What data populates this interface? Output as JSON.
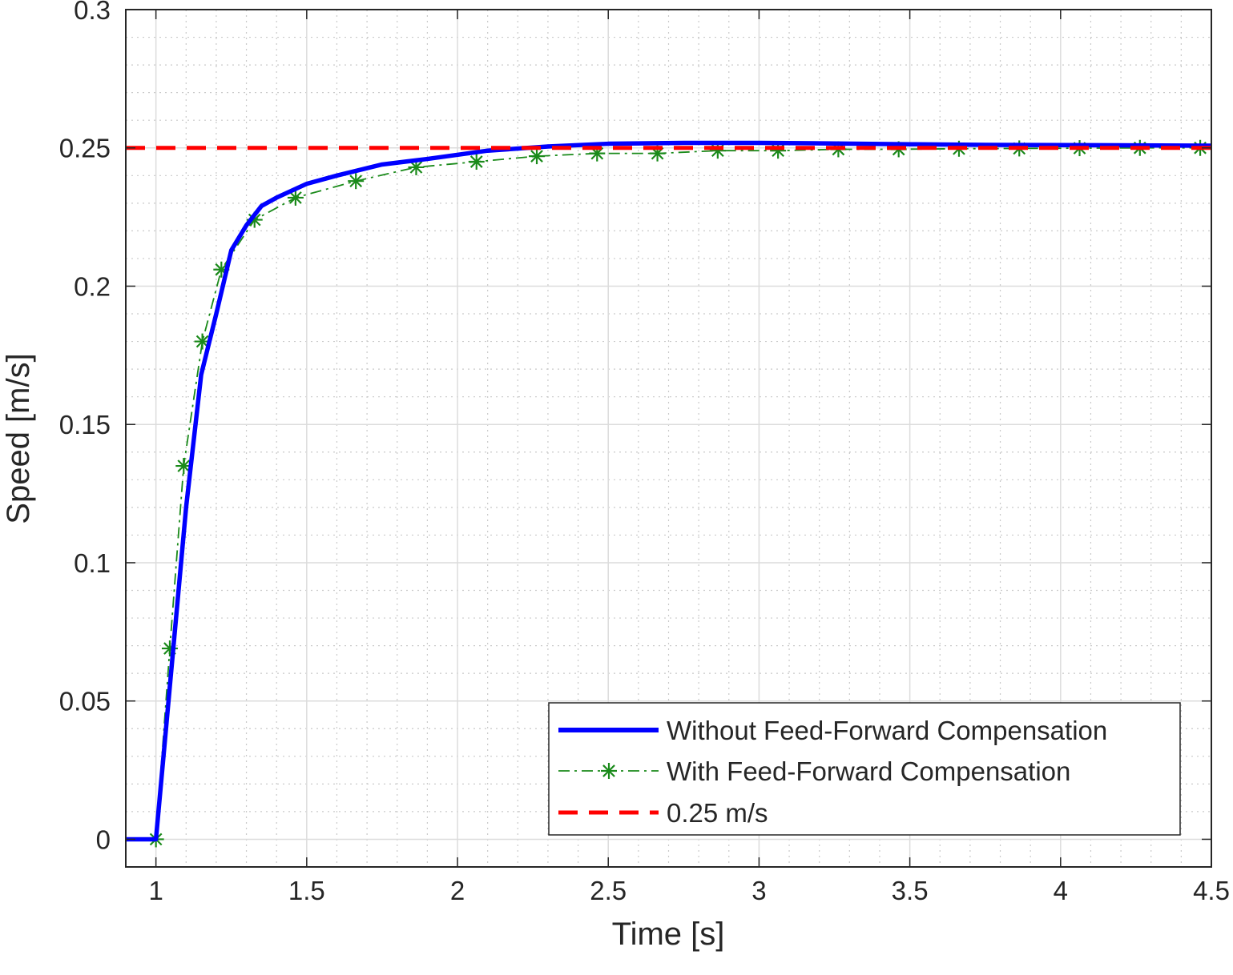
{
  "chart_data": {
    "type": "line",
    "xlabel": "Time [s]",
    "ylabel": "Speed [m/s]",
    "xlim": [
      0.9,
      4.5
    ],
    "ylim": [
      -0.01,
      0.3
    ],
    "xticks": [
      1,
      1.5,
      2,
      2.5,
      3,
      3.5,
      4,
      4.5
    ],
    "xtick_labels": [
      "1",
      "1.5",
      "2",
      "2.5",
      "3",
      "3.5",
      "4",
      "4.5"
    ],
    "yticks": [
      0,
      0.05,
      0.1,
      0.15,
      0.2,
      0.25,
      0.3
    ],
    "ytick_labels": [
      "0",
      "0.05",
      "0.1",
      "0.15",
      "0.2",
      "0.25",
      "0.3"
    ],
    "grid": true,
    "minor_grid": true,
    "legend_position": "bottom-right",
    "series": [
      {
        "name": "Without Feed-Forward Compensation",
        "color": "#0000ff",
        "style": "solid",
        "marker": "none",
        "x": [
          0.9,
          1.0,
          1.05,
          1.1,
          1.15,
          1.2,
          1.25,
          1.3,
          1.35,
          1.4,
          1.5,
          1.6,
          1.75,
          1.9,
          2.1,
          2.3,
          2.5,
          2.75,
          3.0,
          3.25,
          3.5,
          3.75,
          4.0,
          4.25,
          4.5
        ],
        "y": [
          0.0,
          0.0,
          0.06,
          0.12,
          0.168,
          0.19,
          0.213,
          0.222,
          0.229,
          0.232,
          0.237,
          0.24,
          0.244,
          0.246,
          0.249,
          0.2505,
          0.2515,
          0.2518,
          0.2518,
          0.2516,
          0.2513,
          0.2511,
          0.251,
          0.2509,
          0.2508
        ]
      },
      {
        "name": "With Feed-Forward Compensation",
        "color": "#1a8a1a",
        "style": "dashdot",
        "marker": "asterisk",
        "x": [
          1.0,
          1.046,
          1.092,
          1.154,
          1.217,
          1.327,
          1.463,
          1.663,
          1.863,
          2.063,
          2.263,
          2.463,
          2.663,
          2.863,
          3.063,
          3.263,
          3.463,
          3.663,
          3.863,
          4.063,
          4.263,
          4.463
        ],
        "y": [
          0.0,
          0.069,
          0.135,
          0.18,
          0.206,
          0.224,
          0.232,
          0.238,
          0.243,
          0.245,
          0.247,
          0.248,
          0.248,
          0.249,
          0.249,
          0.2495,
          0.2495,
          0.2497,
          0.2498,
          0.2499,
          0.25,
          0.25
        ]
      },
      {
        "name": "0.25 m/s",
        "color": "#ff0000",
        "style": "dashed",
        "marker": "none",
        "x": [
          0.9,
          4.5
        ],
        "y": [
          0.25,
          0.25
        ]
      }
    ]
  }
}
